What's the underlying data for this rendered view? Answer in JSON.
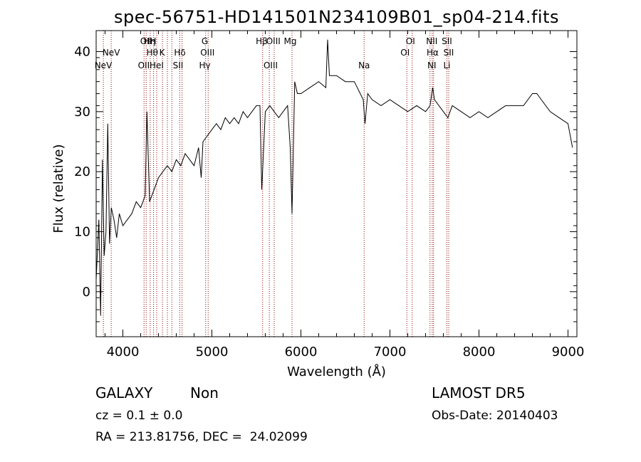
{
  "chart_data": {
    "type": "line",
    "title": "spec-56751-HD141501N234109B01_sp04-214.fits",
    "xlabel": "Wavelength (Å)",
    "ylabel": "Flux (relative)",
    "xlim": [
      3700,
      9100
    ],
    "ylim": [
      -7.5,
      43.5
    ],
    "xticks": [
      4000,
      5000,
      6000,
      7000,
      8000,
      9000
    ],
    "yticks": [
      0,
      10,
      20,
      30,
      40
    ],
    "grid": false,
    "line_color": "#000000",
    "marker_color": "#8b0000",
    "series": [
      {
        "x": [
          3700,
          3730,
          3750,
          3770,
          3790,
          3810,
          3830,
          3850,
          3870,
          3900,
          3930,
          3960,
          4000,
          4050,
          4100,
          4150,
          4200,
          4250,
          4270,
          4300,
          4350,
          4400,
          4450,
          4500,
          4550,
          4600,
          4650,
          4700,
          4750,
          4800,
          4850,
          4880,
          4900,
          4950,
          5000,
          5050,
          5100,
          5150,
          5200,
          5250,
          5300,
          5350,
          5400,
          5450,
          5500,
          5540,
          5560,
          5600,
          5650,
          5700,
          5750,
          5800,
          5850,
          5880,
          5900,
          5930,
          5960,
          6000,
          6100,
          6200,
          6280,
          6300,
          6320,
          6400,
          6500,
          6600,
          6700,
          6720,
          6750,
          6800,
          6900,
          7000,
          7100,
          7200,
          7300,
          7400,
          7450,
          7480,
          7500,
          7550,
          7600,
          7650,
          7700,
          7800,
          7900,
          8000,
          8100,
          8200,
          8300,
          8400,
          8500,
          8600,
          8650,
          8700,
          8800,
          8900,
          9000,
          9050
        ],
        "y": [
          2,
          12,
          -4,
          22,
          6,
          10,
          28,
          8,
          14,
          12,
          9,
          13,
          11,
          12,
          13,
          15,
          14,
          16,
          30,
          15,
          17,
          19,
          20,
          21,
          20,
          22,
          21,
          23,
          22,
          21,
          24,
          19,
          25,
          26,
          27,
          28,
          27,
          29,
          28,
          29,
          28,
          30,
          29,
          30,
          31,
          31,
          17,
          30,
          31,
          30,
          29,
          30,
          31,
          24,
          13,
          35,
          33,
          33,
          34,
          35,
          34,
          42,
          36,
          36,
          35,
          35,
          32,
          28,
          33,
          32,
          31,
          32,
          31,
          30,
          31,
          30,
          31,
          34,
          32,
          31,
          30,
          29,
          31,
          30,
          29,
          30,
          29,
          30,
          31,
          31,
          31,
          33,
          33,
          32,
          30,
          29,
          28,
          24
        ]
      }
    ],
    "markers_top": [
      {
        "label": "NeV",
        "x": 3869
      },
      {
        "label": "OII",
        "x": 4260
      },
      {
        "label": "Hη",
        "x": 4302
      },
      {
        "label": "H",
        "x": 4340
      },
      {
        "label": "Hθ",
        "x": 4330
      },
      {
        "label": "K",
        "x": 4440
      },
      {
        "label": "Hδ",
        "x": 4640
      },
      {
        "label": "G",
        "x": 4920
      },
      {
        "label": "OIII",
        "x": 4950
      },
      {
        "label": "Hβ",
        "x": 5560
      },
      {
        "label": "OIII",
        "x": 5690
      },
      {
        "label": "Mg",
        "x": 5880
      },
      {
        "label": "OI",
        "x": 7230
      },
      {
        "label": "OI",
        "x": 7170
      },
      {
        "label": "NII",
        "x": 7470
      },
      {
        "label": "Hα",
        "x": 7480
      },
      {
        "label": "SII",
        "x": 7640
      },
      {
        "label": "SII",
        "x": 7660
      }
    ],
    "markers_bottom": [
      {
        "label": "NeV",
        "x": 3780
      },
      {
        "label": "OII",
        "x": 4235
      },
      {
        "label": "HeI",
        "x": 4380
      },
      {
        "label": "SII",
        "x": 4620
      },
      {
        "label": "Hγ",
        "x": 4920
      },
      {
        "label": "OIII",
        "x": 5660
      },
      {
        "label": "Na",
        "x": 6710
      },
      {
        "label": "NI",
        "x": 7470
      },
      {
        "label": "Li",
        "x": 7640
      }
    ],
    "marker_lines": [
      3781,
      3869,
      4238,
      4262,
      4307,
      4345,
      4380,
      4445,
      4500,
      4550,
      4640,
      4665,
      4930,
      4958,
      5570,
      5645,
      5700,
      5900,
      6710,
      7190,
      7250,
      7450,
      7475,
      7490,
      7640,
      7660
    ]
  },
  "info": {
    "class": "GALAXY",
    "subclass": "Non",
    "cz": "cz = 0.1 ± 0.0",
    "coords": "RA = 213.81756, DEC =  24.02099",
    "survey": "LAMOST DR5",
    "obs_date": "Obs-Date: 20140403"
  }
}
